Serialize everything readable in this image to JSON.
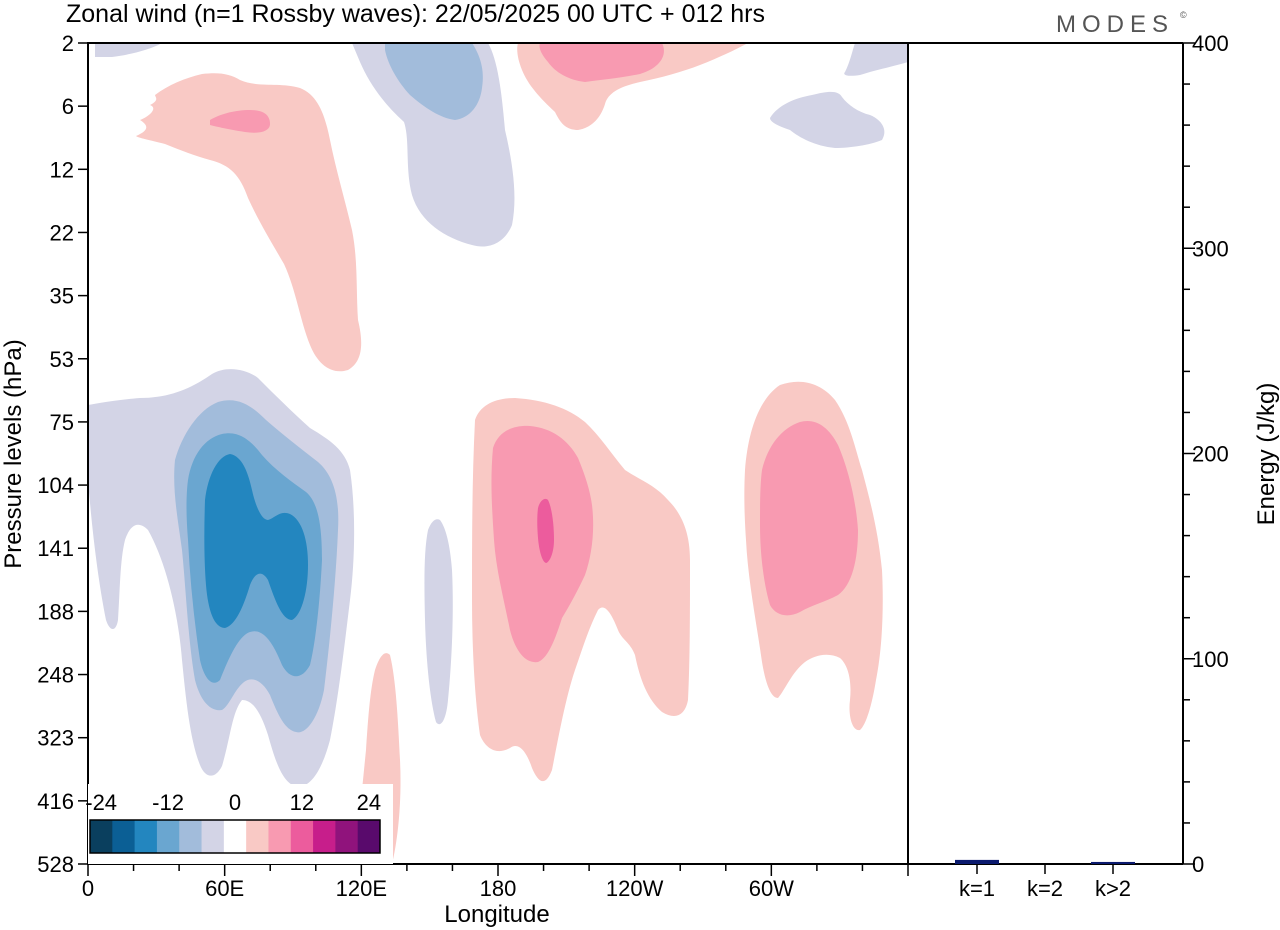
{
  "title": "Zonal wind (n=1 Rossby waves):  22/05/2025  00 UTC  + 012 hrs",
  "brand": "MODES",
  "brand_mark": "©",
  "chart_data": [
    {
      "type": "contour",
      "xlabel": "Longitude",
      "ylabel": "Pressure levels (hPa)",
      "x_ticks": [
        "0",
        "60E",
        "120E",
        "180",
        "120W",
        "60W"
      ],
      "y_ticks": [
        "2",
        "6",
        "12",
        "22",
        "35",
        "53",
        "75",
        "104",
        "141",
        "188",
        "248",
        "323",
        "416",
        "528"
      ],
      "legend": {
        "tick_labels": [
          "-24",
          "-12",
          "0",
          "12",
          "24"
        ],
        "colors": [
          "#0a3f5e",
          "#0b5f95",
          "#2386bf",
          "#6aa6d0",
          "#a2bcdb",
          "#d3d4e6",
          "#ffffff",
          "#f9c9c5",
          "#f89ab1",
          "#ec5c9d",
          "#c71e8b",
          "#90137c",
          "#590a6c"
        ],
        "placement": "bottom-left"
      },
      "contour_regions": [
        {
          "level": "-4",
          "color": "#d3d4e6"
        },
        {
          "level": "-8",
          "color": "#a2bcdb"
        },
        {
          "level": "-12",
          "color": "#6aa6d0"
        },
        {
          "level": "-16",
          "color": "#2386bf"
        },
        {
          "level": "4",
          "color": "#f9c9c5"
        },
        {
          "level": "8",
          "color": "#f89ab1"
        },
        {
          "level": "12",
          "color": "#ec5c9d"
        }
      ]
    },
    {
      "type": "bar",
      "categories": [
        "k=1",
        "k=2",
        "k>2"
      ],
      "values": [
        2,
        0,
        1
      ],
      "ylabel": "Energy (J/kg)",
      "ylim": [
        0,
        400
      ],
      "y_ticks": [
        "0",
        "100",
        "200",
        "300",
        "400"
      ],
      "bar_color": "#0b1a6e"
    }
  ]
}
